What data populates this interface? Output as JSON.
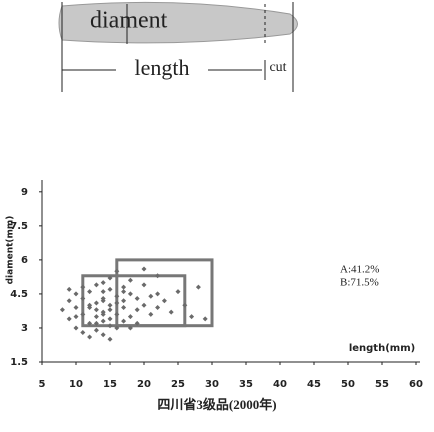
{
  "diagram": {
    "labels": [
      "diament",
      "length",
      "cut"
    ]
  },
  "chart_data": {
    "type": "scatter",
    "title": "四川省3级品(2000年)",
    "xlabel": "length(mm)",
    "ylabel": "diament(mm)",
    "xlim": [
      5,
      60
    ],
    "xticks": [
      5,
      10,
      15,
      20,
      25,
      30,
      35,
      40,
      45,
      50,
      55,
      60
    ],
    "ylim": [
      1.5,
      9.3
    ],
    "yticks": [
      1.5,
      3,
      4.5,
      6,
      7.5,
      9
    ],
    "x": [
      8,
      9,
      9,
      10,
      10,
      10,
      11,
      11,
      11,
      12,
      12,
      12,
      12,
      13,
      13,
      13,
      13,
      13,
      14,
      14,
      14,
      14,
      14,
      14,
      15,
      15,
      15,
      15,
      15,
      16,
      16,
      16,
      16,
      17,
      17,
      17,
      17,
      18,
      18,
      18,
      19,
      19,
      19,
      20,
      20,
      21,
      21,
      22,
      22,
      23,
      24,
      25,
      26,
      27,
      28,
      29,
      12,
      14,
      16,
      11,
      13,
      15,
      17,
      9,
      10,
      18,
      20,
      22,
      15,
      14
    ],
    "series": [
      {
        "color": "#6a6a6a",
        "values": [
          3.8,
          3.4,
          4.2,
          3.0,
          3.9,
          4.5,
          2.8,
          3.6,
          4.8,
          3.2,
          4.0,
          4.6,
          2.6,
          3.5,
          4.1,
          4.9,
          2.9,
          3.8,
          3.3,
          4.3,
          5.0,
          3.7,
          2.7,
          4.6,
          3.4,
          4.0,
          4.7,
          3.1,
          5.2,
          3.6,
          4.4,
          3.0,
          5.5,
          3.9,
          4.8,
          3.3,
          4.2,
          3.5,
          4.5,
          5.1,
          3.8,
          4.3,
          3.2,
          4.0,
          4.9,
          3.6,
          4.4,
          3.9,
          5.3,
          4.2,
          3.7,
          4.6,
          4.0,
          3.5,
          4.8,
          3.4,
          3.9,
          3.6,
          4.1,
          4.3,
          3.2,
          3.8,
          4.6,
          4.7,
          3.5,
          3.0,
          5.6,
          4.5,
          2.5,
          4.2
        ]
      }
    ],
    "boxes": [
      {
        "x": [
          16,
          30
        ],
        "y": [
          3.1,
          6
        ]
      },
      {
        "x": [
          11,
          26
        ],
        "y": [
          3.1,
          5.3
        ]
      }
    ],
    "annotations": [
      "A:41.2%",
      "B:71.5%"
    ]
  }
}
